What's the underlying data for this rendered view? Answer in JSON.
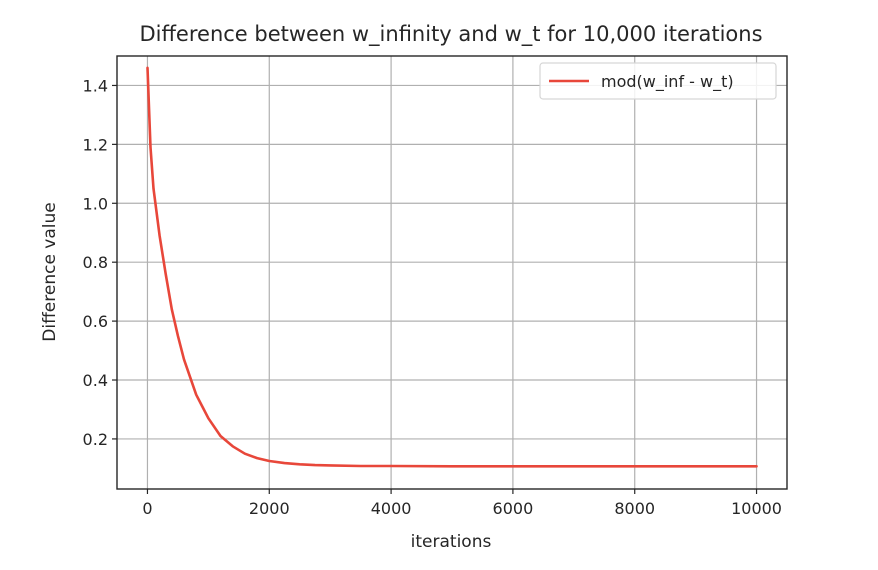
{
  "chart_data": {
    "type": "line",
    "title": "Difference between w_infinity and w_t for 10,000 iterations",
    "xlabel": "iterations",
    "ylabel": "Difference value",
    "xlim": [
      -500,
      10500
    ],
    "ylim": [
      0.03,
      1.5
    ],
    "xticks": [
      0,
      2000,
      4000,
      6000,
      8000,
      10000
    ],
    "xtick_labels": [
      "0",
      "2000",
      "4000",
      "6000",
      "8000",
      "10000"
    ],
    "yticks": [
      0.2,
      0.4,
      0.6,
      0.8,
      1.0,
      1.2,
      1.4
    ],
    "ytick_labels": [
      "0.2",
      "0.4",
      "0.6",
      "0.8",
      "1.0",
      "1.2",
      "1.4"
    ],
    "grid": true,
    "legend_position": "top-right",
    "series": [
      {
        "name": "mod(w_inf - w_t)",
        "color": "#e8473a",
        "x": [
          0,
          50,
          100,
          200,
          300,
          400,
          500,
          600,
          700,
          800,
          900,
          1000,
          1200,
          1400,
          1600,
          1800,
          2000,
          2250,
          2500,
          2750,
          3000,
          3500,
          4000,
          5000,
          6000,
          7000,
          8000,
          9000,
          10000
        ],
        "y": [
          1.46,
          1.19,
          1.05,
          0.89,
          0.76,
          0.64,
          0.55,
          0.47,
          0.41,
          0.35,
          0.31,
          0.27,
          0.21,
          0.175,
          0.15,
          0.135,
          0.125,
          0.118,
          0.114,
          0.111,
          0.11,
          0.108,
          0.108,
          0.107,
          0.107,
          0.107,
          0.107,
          0.107,
          0.107
        ]
      }
    ]
  }
}
